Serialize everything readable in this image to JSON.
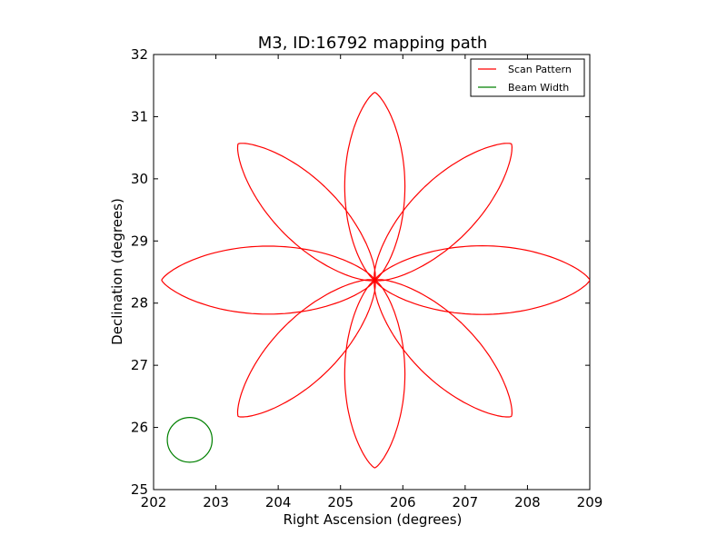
{
  "chart_data": {
    "type": "line",
    "title": "M3, ID:16792 mapping path",
    "xlabel": "Right Ascension (degrees)",
    "ylabel": "Declination (degrees)",
    "xlim": [
      202,
      209
    ],
    "ylim": [
      25,
      32
    ],
    "xticks": [
      202,
      203,
      204,
      205,
      206,
      207,
      208,
      209
    ],
    "yticks": [
      25,
      26,
      27,
      28,
      29,
      30,
      31,
      32
    ],
    "grid": false,
    "legend_position": "top-right",
    "center": [
      205.55,
      28.37
    ],
    "series": [
      {
        "name": "Scan Pattern",
        "color": "#ff0000",
        "kind": "rose",
        "petals": 8,
        "petal_angles_deg": [
          0,
          45,
          90,
          135,
          180,
          225,
          270,
          315
        ],
        "petal_lengths_deg": [
          3.45,
          3.1,
          3.02,
          3.1,
          3.42,
          3.1,
          3.02,
          3.1
        ],
        "petal_half_width_ratio": 0.16
      },
      {
        "name": "Beam Width",
        "color": "#008000",
        "kind": "circle",
        "center": [
          202.58,
          25.8
        ],
        "radius": 0.36
      }
    ]
  },
  "colors": {
    "scan": "#ff0000",
    "beam": "#008000",
    "axes": "#000000"
  }
}
